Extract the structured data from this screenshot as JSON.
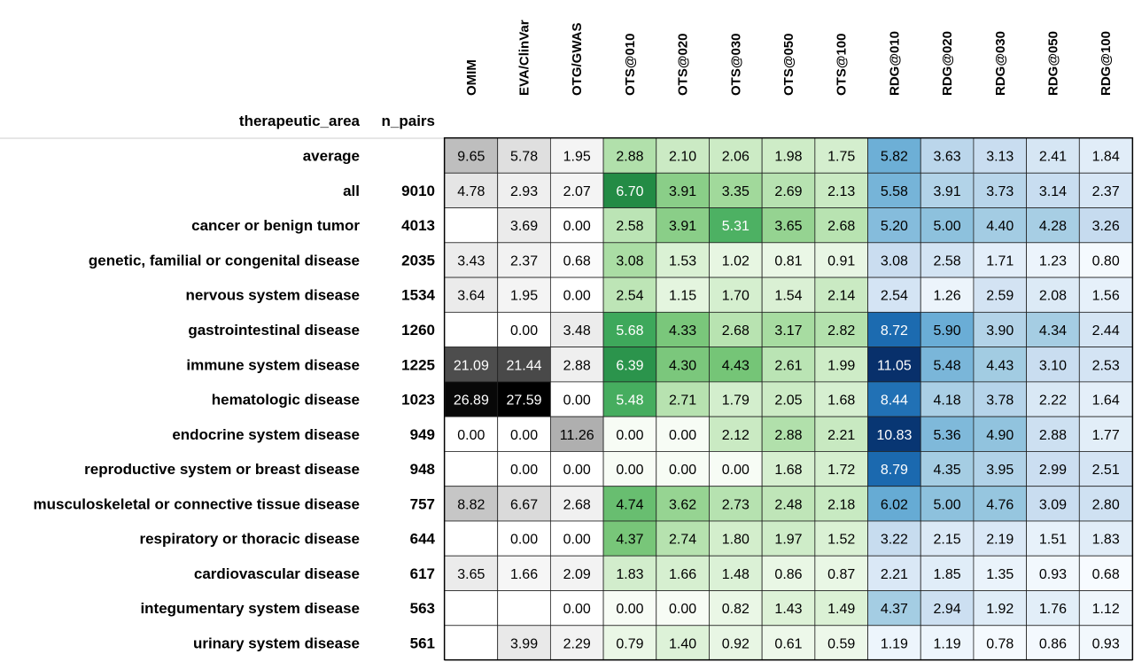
{
  "chart_data": {
    "type": "heatmap",
    "index_header": "therapeutic_area",
    "n_pairs_header": "n_pairs",
    "columns": [
      "OMIM",
      "EVA/ClinVar",
      "OTG/GWAS",
      "OTS@010",
      "OTS@020",
      "OTS@030",
      "OTS@050",
      "OTS@100",
      "RDG@010",
      "RDG@020",
      "RDG@030",
      "RDG@050",
      "RDG@100"
    ],
    "column_groups": [
      {
        "columns": [
          0,
          1,
          2
        ],
        "colormap": "greys",
        "color_low": "#ffffff",
        "color_high": "#000000"
      },
      {
        "columns": [
          3,
          4,
          5,
          6,
          7
        ],
        "colormap": "greens",
        "color_low": "#f7fcf5",
        "color_high": "#238b45"
      },
      {
        "columns": [
          8,
          9,
          10,
          11,
          12
        ],
        "colormap": "blues",
        "color_low": "#f7fbff",
        "color_high": "#08306b"
      }
    ],
    "rows": [
      {
        "label": "average",
        "n_pairs": "",
        "values": [
          9.65,
          5.78,
          1.95,
          2.88,
          2.1,
          2.06,
          1.98,
          1.75,
          5.82,
          3.63,
          3.13,
          2.41,
          1.84
        ]
      },
      {
        "label": "all",
        "n_pairs": "9010",
        "values": [
          4.78,
          2.93,
          2.07,
          6.7,
          3.91,
          3.35,
          2.69,
          2.13,
          5.58,
          3.91,
          3.73,
          3.14,
          2.37
        ]
      },
      {
        "label": "cancer or benign tumor",
        "n_pairs": "4013",
        "values": [
          null,
          3.69,
          0.0,
          2.58,
          3.91,
          5.31,
          3.65,
          2.68,
          5.2,
          5.0,
          4.4,
          4.28,
          3.26
        ]
      },
      {
        "label": "genetic, familial or congenital disease",
        "n_pairs": "2035",
        "values": [
          3.43,
          2.37,
          0.68,
          3.08,
          1.53,
          1.02,
          0.81,
          0.91,
          3.08,
          2.58,
          1.71,
          1.23,
          0.8
        ]
      },
      {
        "label": "nervous system disease",
        "n_pairs": "1534",
        "values": [
          3.64,
          1.95,
          0.0,
          2.54,
          1.15,
          1.7,
          1.54,
          2.14,
          2.54,
          1.26,
          2.59,
          2.08,
          1.56
        ]
      },
      {
        "label": "gastrointestinal disease",
        "n_pairs": "1260",
        "values": [
          null,
          0.0,
          3.48,
          5.68,
          4.33,
          2.68,
          3.17,
          2.82,
          8.72,
          5.9,
          3.9,
          4.34,
          2.44
        ]
      },
      {
        "label": "immune system disease",
        "n_pairs": "1225",
        "values": [
          21.09,
          21.44,
          2.88,
          6.39,
          4.3,
          4.43,
          2.61,
          1.99,
          11.05,
          5.48,
          4.43,
          3.1,
          2.53
        ]
      },
      {
        "label": "hematologic disease",
        "n_pairs": "1023",
        "values": [
          26.89,
          27.59,
          0.0,
          5.48,
          2.71,
          1.79,
          2.05,
          1.68,
          8.44,
          4.18,
          3.78,
          2.22,
          1.64
        ]
      },
      {
        "label": "endocrine system disease",
        "n_pairs": "949",
        "values": [
          0.0,
          0.0,
          11.26,
          0.0,
          0.0,
          2.12,
          2.88,
          2.21,
          10.83,
          5.36,
          4.9,
          2.88,
          1.77
        ]
      },
      {
        "label": "reproductive system or breast disease",
        "n_pairs": "948",
        "values": [
          null,
          0.0,
          0.0,
          0.0,
          0.0,
          0.0,
          1.68,
          1.72,
          8.79,
          4.35,
          3.95,
          2.99,
          2.51
        ]
      },
      {
        "label": "musculoskeletal or connective tissue disease",
        "n_pairs": "757",
        "values": [
          8.82,
          6.67,
          2.68,
          4.74,
          3.62,
          2.73,
          2.48,
          2.18,
          6.02,
          5.0,
          4.76,
          3.09,
          2.8
        ]
      },
      {
        "label": "respiratory or thoracic disease",
        "n_pairs": "644",
        "values": [
          null,
          0.0,
          0.0,
          4.37,
          2.74,
          1.8,
          1.97,
          1.52,
          3.22,
          2.15,
          2.19,
          1.51,
          1.83
        ]
      },
      {
        "label": "cardiovascular disease",
        "n_pairs": "617",
        "values": [
          3.65,
          1.66,
          2.09,
          1.83,
          1.66,
          1.48,
          0.86,
          0.87,
          2.21,
          1.85,
          1.35,
          0.93,
          0.68
        ]
      },
      {
        "label": "integumentary system disease",
        "n_pairs": "563",
        "values": [
          null,
          null,
          0.0,
          0.0,
          0.0,
          0.82,
          1.43,
          1.49,
          4.37,
          2.94,
          1.92,
          1.76,
          1.12
        ]
      },
      {
        "label": "urinary system disease",
        "n_pairs": "561",
        "values": [
          null,
          3.99,
          2.29,
          0.79,
          1.4,
          0.92,
          0.61,
          0.59,
          1.19,
          1.19,
          0.78,
          0.86,
          0.93
        ]
      }
    ]
  }
}
